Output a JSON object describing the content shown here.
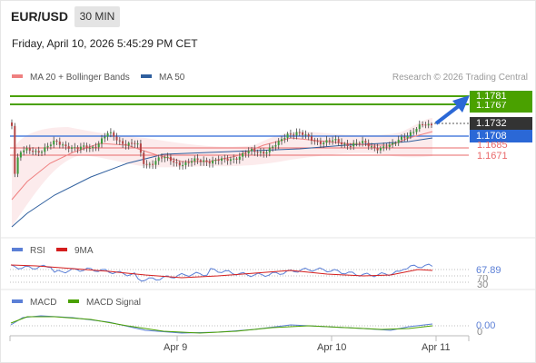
{
  "header": {
    "symbol": "EUR/USD",
    "timeframe": "30 MIN",
    "datetime": "Friday, April 10, 2026 5:45:29 PM CET"
  },
  "legend": {
    "ma20_label": "MA 20 + Bollinger Bands",
    "ma50_label": "MA 50",
    "copyright": "Research © 2026 Trading Central"
  },
  "colors": {
    "bullish": "#4aa100",
    "resistance_blue": "#2b68d6",
    "support_red": "#e9686a",
    "ma20": "#ef8080",
    "ma50": "#2f5f9e",
    "rsi": "#5b7fd6",
    "rsi_ma": "#d41e1e",
    "macd": "#5b7fd6",
    "macd_signal": "#4aa100",
    "candle_up": "#3c9a3c",
    "candle_down": "#b44646"
  },
  "price_levels": {
    "target_1": "1.1781",
    "target_2": "1.1767",
    "last_price": "1.1732",
    "pivot": "1.1708",
    "support_1": "1.1685",
    "support_2": "1.1671"
  },
  "rsi_panel": {
    "rsi_label": "RSI",
    "ma_label": "9MA",
    "value": "67.89",
    "level_high": "70",
    "level_low": "30"
  },
  "macd_panel": {
    "macd_label": "MACD",
    "signal_label": "MACD Signal",
    "value": "0.00",
    "zero": "0"
  },
  "x_axis": {
    "labels": [
      "Apr 9",
      "Apr 10",
      "Apr 11"
    ]
  }
}
